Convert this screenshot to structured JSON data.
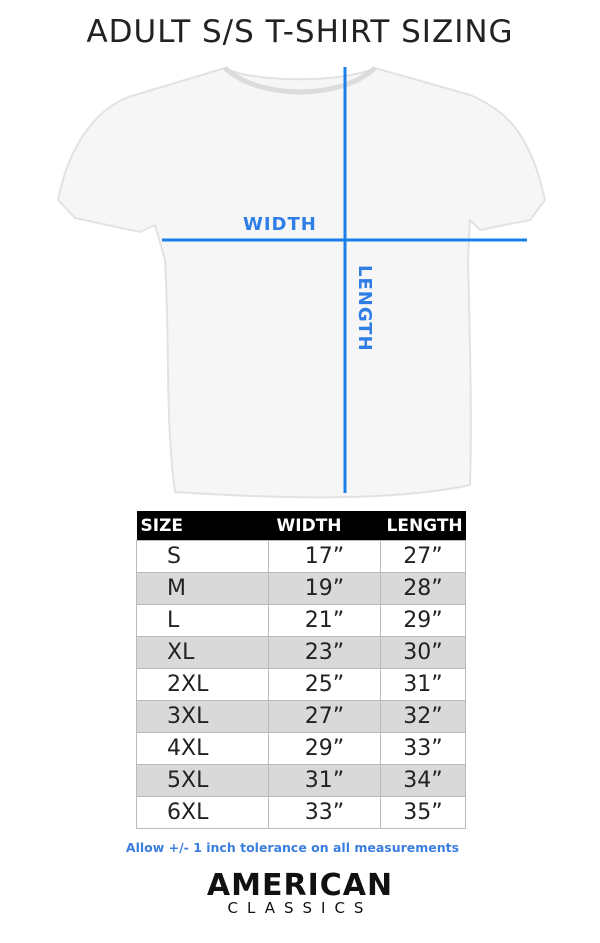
{
  "title": "ADULT S/S T-SHIRT SIZING",
  "diagram": {
    "width_label": "WIDTH",
    "length_label": "LENGTH",
    "line_color": "#1a7fe8"
  },
  "table": {
    "headers": [
      "SIZE",
      "WIDTH",
      "LENGTH"
    ],
    "rows": [
      [
        "S",
        "17”",
        "27”"
      ],
      [
        "M",
        "19”",
        "28”"
      ],
      [
        "L",
        "21”",
        "29”"
      ],
      [
        "XL",
        "23”",
        "30”"
      ],
      [
        "2XL",
        "25”",
        "31”"
      ],
      [
        "3XL",
        "27”",
        "32”"
      ],
      [
        "4XL",
        "29”",
        "33”"
      ],
      [
        "5XL",
        "31”",
        "34”"
      ],
      [
        "6XL",
        "33”",
        "35”"
      ]
    ]
  },
  "note": "Allow +/- 1 inch tolerance on all measurements",
  "brand": {
    "line1": "AMERICAN",
    "line2": "CLASSICS"
  }
}
